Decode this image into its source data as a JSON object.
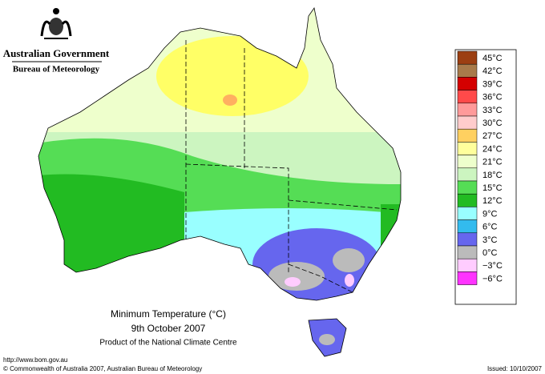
{
  "header": {
    "title": "Australian Government",
    "subtitle": "Bureau of Meteorology"
  },
  "legend": {
    "items": [
      {
        "label": "45°C",
        "color": "#9c3f12"
      },
      {
        "label": "42°C",
        "color": "#a87a4a"
      },
      {
        "label": "39°C",
        "color": "#d40000"
      },
      {
        "label": "36°C",
        "color": "#ff4a4a"
      },
      {
        "label": "33°C",
        "color": "#ff9a9a"
      },
      {
        "label": "30°C",
        "color": "#ffcccc"
      },
      {
        "label": "27°C",
        "color": "#ffd060"
      },
      {
        "label": "24°C",
        "color": "#ffff9c"
      },
      {
        "label": "21°C",
        "color": "#eeffcc"
      },
      {
        "label": "18°C",
        "color": "#ccf5c0"
      },
      {
        "label": "15°C",
        "color": "#55dd55"
      },
      {
        "label": "12°C",
        "color": "#22bb22"
      },
      {
        "label": "9°C",
        "color": "#99ffff"
      },
      {
        "label": "6°C",
        "color": "#33bbee"
      },
      {
        "label": "3°C",
        "color": "#6666ee"
      },
      {
        "label": "0°C",
        "color": "#bbbbbb"
      },
      {
        "label": "−3°C",
        "color": "#ffccff"
      },
      {
        "label": "−6°C",
        "color": "#ff33ff"
      }
    ]
  },
  "caption": {
    "title": "Minimum Temperature (°C)",
    "date": "9th October 2007",
    "product": "Product of the National Climate Centre"
  },
  "footer": {
    "url": "http://www.bom.gov.au",
    "copyright": "© Commonwealth of Australia 2007, Australian Bureau of Meteorology",
    "issued": "Issued: 10/10/2007"
  }
}
